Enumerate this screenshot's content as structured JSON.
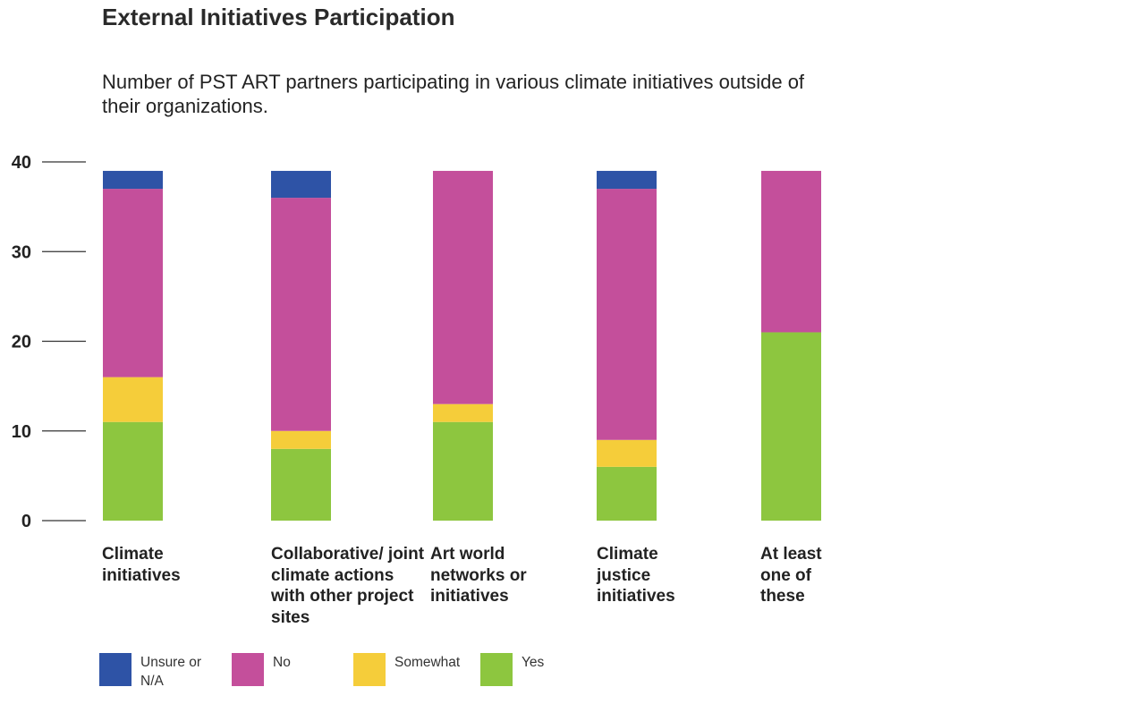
{
  "chart_data": {
    "type": "bar",
    "stacked": true,
    "title": "External Initiatives Participation",
    "subtitle": "Number of PST ART partners participating in various climate initiatives outside of their organizations.",
    "categories": [
      "Climate initiatives",
      "Collaborative/ joint climate actions with other project sites",
      "Art world networks or initiatives",
      "Climate justice initiatives",
      "At least one of these"
    ],
    "series": [
      {
        "name": "Yes",
        "color": "#8dc63f",
        "values": [
          11,
          8,
          11,
          6,
          21
        ]
      },
      {
        "name": "Somewhat",
        "color": "#f5cd3a",
        "values": [
          5,
          2,
          2,
          3,
          0
        ]
      },
      {
        "name": "No",
        "color": "#c44f9b",
        "values": [
          21,
          26,
          26,
          28,
          18
        ]
      },
      {
        "name": "Unsure or N/A",
        "color": "#2e53a6",
        "values": [
          2,
          3,
          0,
          2,
          0
        ]
      }
    ],
    "legend_order": [
      "Unsure or N/A",
      "No",
      "Somewhat",
      "Yes"
    ],
    "yticks": [
      "0",
      "10",
      "20",
      "30",
      "40"
    ],
    "ylim": [
      0,
      40
    ],
    "legend_position": "bottom",
    "grid": false
  }
}
